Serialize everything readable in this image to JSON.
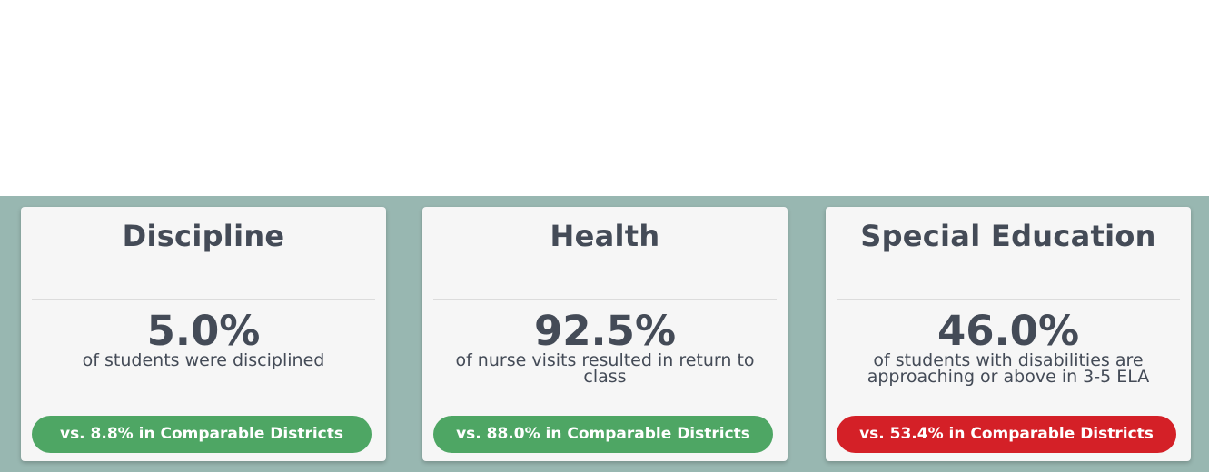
{
  "cards": [
    {
      "title": "Discipline",
      "value": "5.0%",
      "description": "of students were disciplined",
      "comparison": "vs. 8.8% in Comparable Districts",
      "status": "good",
      "status_color": "#4ea664"
    },
    {
      "title": "Health",
      "value": "92.5%",
      "description": "of nurse visits resulted in return to class",
      "comparison": "vs. 88.0% in Comparable Districts",
      "status": "good",
      "status_color": "#4ea664"
    },
    {
      "title": "Special Education",
      "value": "46.0%",
      "description": "of students with disabilities are approaching or above in 3-5 ELA",
      "comparison": "vs. 53.4% in Comparable Districts",
      "status": "bad",
      "status_color": "#d42027"
    }
  ],
  "colors": {
    "band": "#98b7b1",
    "card": "#f6f6f6",
    "text": "#444b57"
  }
}
